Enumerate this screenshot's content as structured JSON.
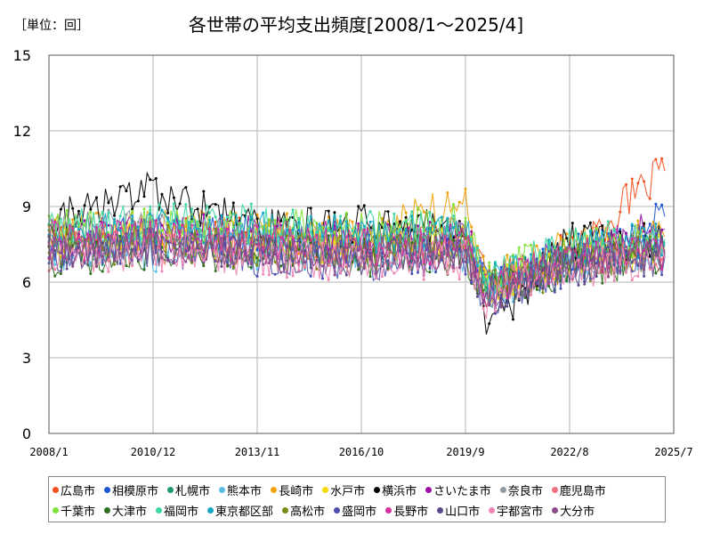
{
  "chart_data": {
    "type": "line",
    "title": "各世帯の平均支出頻度[2008/1～2025/4]",
    "unit_label": "［単位：回］",
    "xlabel": "",
    "ylabel": "",
    "x_start": "2008/1",
    "x_end": "2025/4",
    "x_ticks": [
      "2008/1",
      "2010/12",
      "2013/11",
      "2016/10",
      "2019/9",
      "2022/8",
      "2025/7"
    ],
    "y_ticks": [
      0,
      3,
      6,
      9,
      12,
      15
    ],
    "ylim": [
      0,
      15
    ],
    "grid": true,
    "legend_position": "bottom",
    "series": [
      {
        "name": "広島市",
        "color": "#f4511e",
        "points": [
          [
            "2008/1",
            7.8
          ],
          [
            "2010/12",
            8.1
          ],
          [
            "2013/11",
            7.7
          ],
          [
            "2016/10",
            7.6
          ],
          [
            "2019/9",
            7.9
          ],
          [
            "2020/4",
            6.0
          ],
          [
            "2022/8",
            7.2
          ],
          [
            "2025/4",
            10.4
          ]
        ]
      },
      {
        "name": "相模原市",
        "color": "#1e56d6",
        "points": [
          [
            "2008/1",
            7.6
          ],
          [
            "2010/12",
            7.9
          ],
          [
            "2013/11",
            7.8
          ],
          [
            "2016/10",
            7.5
          ],
          [
            "2019/9",
            7.7
          ],
          [
            "2020/4",
            5.8
          ],
          [
            "2022/8",
            7.0
          ],
          [
            "2025/4",
            8.6
          ]
        ]
      },
      {
        "name": "札幌市",
        "color": "#1d9a72",
        "points": [
          [
            "2008/1",
            7.3
          ],
          [
            "2010/12",
            7.6
          ],
          [
            "2013/11",
            7.4
          ],
          [
            "2016/10",
            7.3
          ],
          [
            "2019/9",
            7.5
          ],
          [
            "2020/4",
            5.7
          ],
          [
            "2022/8",
            6.8
          ],
          [
            "2025/4",
            7.4
          ]
        ]
      },
      {
        "name": "熊本市",
        "color": "#5bbde8",
        "points": [
          [
            "2008/1",
            7.1
          ],
          [
            "2010/12",
            7.2
          ],
          [
            "2013/11",
            7.3
          ],
          [
            "2016/10",
            7.0
          ],
          [
            "2019/9",
            7.2
          ],
          [
            "2020/4",
            5.4
          ],
          [
            "2022/8",
            6.7
          ],
          [
            "2025/4",
            7.2
          ]
        ]
      },
      {
        "name": "長崎市",
        "color": "#f0a30a",
        "points": [
          [
            "2008/1",
            7.9
          ],
          [
            "2010/12",
            8.2
          ],
          [
            "2013/11",
            8.0
          ],
          [
            "2016/10",
            7.8
          ],
          [
            "2019/9",
            9.2
          ],
          [
            "2020/4",
            6.1
          ],
          [
            "2022/8",
            7.4
          ],
          [
            "2025/4",
            7.8
          ]
        ]
      },
      {
        "name": "水戸市",
        "color": "#f5d90a",
        "points": [
          [
            "2008/1",
            7.7
          ],
          [
            "2010/12",
            7.8
          ],
          [
            "2013/11",
            7.5
          ],
          [
            "2016/10",
            7.4
          ],
          [
            "2019/9",
            7.6
          ],
          [
            "2020/4",
            5.9
          ],
          [
            "2022/8",
            6.9
          ],
          [
            "2025/4",
            7.3
          ]
        ]
      },
      {
        "name": "横浜市",
        "color": "#000000",
        "points": [
          [
            "2008/1",
            8.4
          ],
          [
            "2010/12",
            9.6
          ],
          [
            "2013/11",
            8.1
          ],
          [
            "2016/10",
            8.4
          ],
          [
            "2019/9",
            8.0
          ],
          [
            "2020/4",
            4.2
          ],
          [
            "2022/8",
            7.6
          ],
          [
            "2025/4",
            7.5
          ]
        ]
      },
      {
        "name": "さいたま市",
        "color": "#9b11a8",
        "points": [
          [
            "2008/1",
            7.8
          ],
          [
            "2010/12",
            7.9
          ],
          [
            "2013/11",
            7.9
          ],
          [
            "2016/10",
            7.6
          ],
          [
            "2019/9",
            7.8
          ],
          [
            "2020/4",
            5.8
          ],
          [
            "2022/8",
            7.3
          ],
          [
            "2025/4",
            8.1
          ]
        ]
      },
      {
        "name": "奈良市",
        "color": "#8f9aa3",
        "points": [
          [
            "2008/1",
            8.3
          ],
          [
            "2010/12",
            8.0
          ],
          [
            "2013/11",
            7.6
          ],
          [
            "2016/10",
            7.4
          ],
          [
            "2019/9",
            7.6
          ],
          [
            "2020/4",
            5.7
          ],
          [
            "2022/8",
            6.9
          ],
          [
            "2025/4",
            7.4
          ]
        ]
      },
      {
        "name": "鹿児島市",
        "color": "#f2707f",
        "points": [
          [
            "2008/1",
            7.2
          ],
          [
            "2010/12",
            7.5
          ],
          [
            "2013/11",
            7.4
          ],
          [
            "2016/10",
            7.2
          ],
          [
            "2019/9",
            7.3
          ],
          [
            "2020/4",
            5.6
          ],
          [
            "2022/8",
            6.8
          ],
          [
            "2025/4",
            7.1
          ]
        ]
      },
      {
        "name": "千葉市",
        "color": "#7fe23a",
        "points": [
          [
            "2008/1",
            8.0
          ],
          [
            "2010/12",
            8.3
          ],
          [
            "2013/11",
            8.2
          ],
          [
            "2016/10",
            8.0
          ],
          [
            "2019/9",
            8.4
          ],
          [
            "2020/4",
            6.0
          ],
          [
            "2022/8",
            7.5
          ],
          [
            "2025/4",
            7.6
          ]
        ]
      },
      {
        "name": "大津市",
        "color": "#2f6e1e",
        "points": [
          [
            "2008/1",
            7.0
          ],
          [
            "2010/12",
            7.3
          ],
          [
            "2013/11",
            7.2
          ],
          [
            "2016/10",
            7.0
          ],
          [
            "2019/9",
            7.1
          ],
          [
            "2020/4",
            5.5
          ],
          [
            "2022/8",
            6.6
          ],
          [
            "2025/4",
            7.0
          ]
        ]
      },
      {
        "name": "福岡市",
        "color": "#3ad6a4",
        "points": [
          [
            "2008/1",
            8.1
          ],
          [
            "2010/12",
            8.4
          ],
          [
            "2013/11",
            8.3
          ],
          [
            "2016/10",
            8.1
          ],
          [
            "2019/9",
            8.2
          ],
          [
            "2020/4",
            6.0
          ],
          [
            "2022/8",
            7.6
          ],
          [
            "2025/4",
            7.7
          ]
        ]
      },
      {
        "name": "東京都区部",
        "color": "#15a9c4",
        "points": [
          [
            "2008/1",
            7.9
          ],
          [
            "2010/12",
            8.1
          ],
          [
            "2013/11",
            8.0
          ],
          [
            "2016/10",
            7.8
          ],
          [
            "2019/9",
            7.9
          ],
          [
            "2020/4",
            5.9
          ],
          [
            "2022/8",
            7.3
          ],
          [
            "2025/4",
            7.6
          ]
        ]
      },
      {
        "name": "高松市",
        "color": "#7c8a16",
        "points": [
          [
            "2008/1",
            7.4
          ],
          [
            "2010/12",
            7.5
          ],
          [
            "2013/11",
            7.3
          ],
          [
            "2016/10",
            7.1
          ],
          [
            "2019/9",
            7.3
          ],
          [
            "2020/4",
            5.6
          ],
          [
            "2022/8",
            6.7
          ],
          [
            "2025/4",
            7.2
          ]
        ]
      },
      {
        "name": "盛岡市",
        "color": "#4a4fb0",
        "points": [
          [
            "2008/1",
            7.2
          ],
          [
            "2010/12",
            7.4
          ],
          [
            "2013/11",
            7.0
          ],
          [
            "2016/10",
            6.8
          ],
          [
            "2019/9",
            7.0
          ],
          [
            "2020/4",
            5.4
          ],
          [
            "2022/8",
            6.6
          ],
          [
            "2025/4",
            7.0
          ]
        ]
      },
      {
        "name": "長野市",
        "color": "#d62f9e",
        "points": [
          [
            "2008/1",
            7.6
          ],
          [
            "2010/12",
            7.7
          ],
          [
            "2013/11",
            7.5
          ],
          [
            "2016/10",
            7.3
          ],
          [
            "2019/9",
            7.5
          ],
          [
            "2020/4",
            5.7
          ],
          [
            "2022/8",
            6.9
          ],
          [
            "2025/4",
            7.3
          ]
        ]
      },
      {
        "name": "山口市",
        "color": "#5a4a8c",
        "points": [
          [
            "2008/1",
            7.1
          ],
          [
            "2010/12",
            7.3
          ],
          [
            "2013/11",
            7.1
          ],
          [
            "2016/10",
            6.9
          ],
          [
            "2019/9",
            7.0
          ],
          [
            "2020/4",
            5.5
          ],
          [
            "2022/8",
            6.6
          ],
          [
            "2025/4",
            7.0
          ]
        ]
      },
      {
        "name": "宇都宮市",
        "color": "#ef86b5",
        "points": [
          [
            "2008/1",
            7.0
          ],
          [
            "2010/12",
            7.2
          ],
          [
            "2013/11",
            7.0
          ],
          [
            "2016/10",
            6.8
          ],
          [
            "2019/9",
            6.9
          ],
          [
            "2020/4",
            5.3
          ],
          [
            "2022/8",
            6.5
          ],
          [
            "2025/4",
            6.9
          ]
        ]
      },
      {
        "name": "大分市",
        "color": "#8a4c8c",
        "points": [
          [
            "2008/1",
            7.3
          ],
          [
            "2010/12",
            7.4
          ],
          [
            "2013/11",
            7.2
          ],
          [
            "2016/10",
            7.0
          ],
          [
            "2019/9",
            7.2
          ],
          [
            "2020/4",
            5.6
          ],
          [
            "2022/8",
            6.7
          ],
          [
            "2025/4",
            7.1
          ]
        ]
      }
    ]
  }
}
